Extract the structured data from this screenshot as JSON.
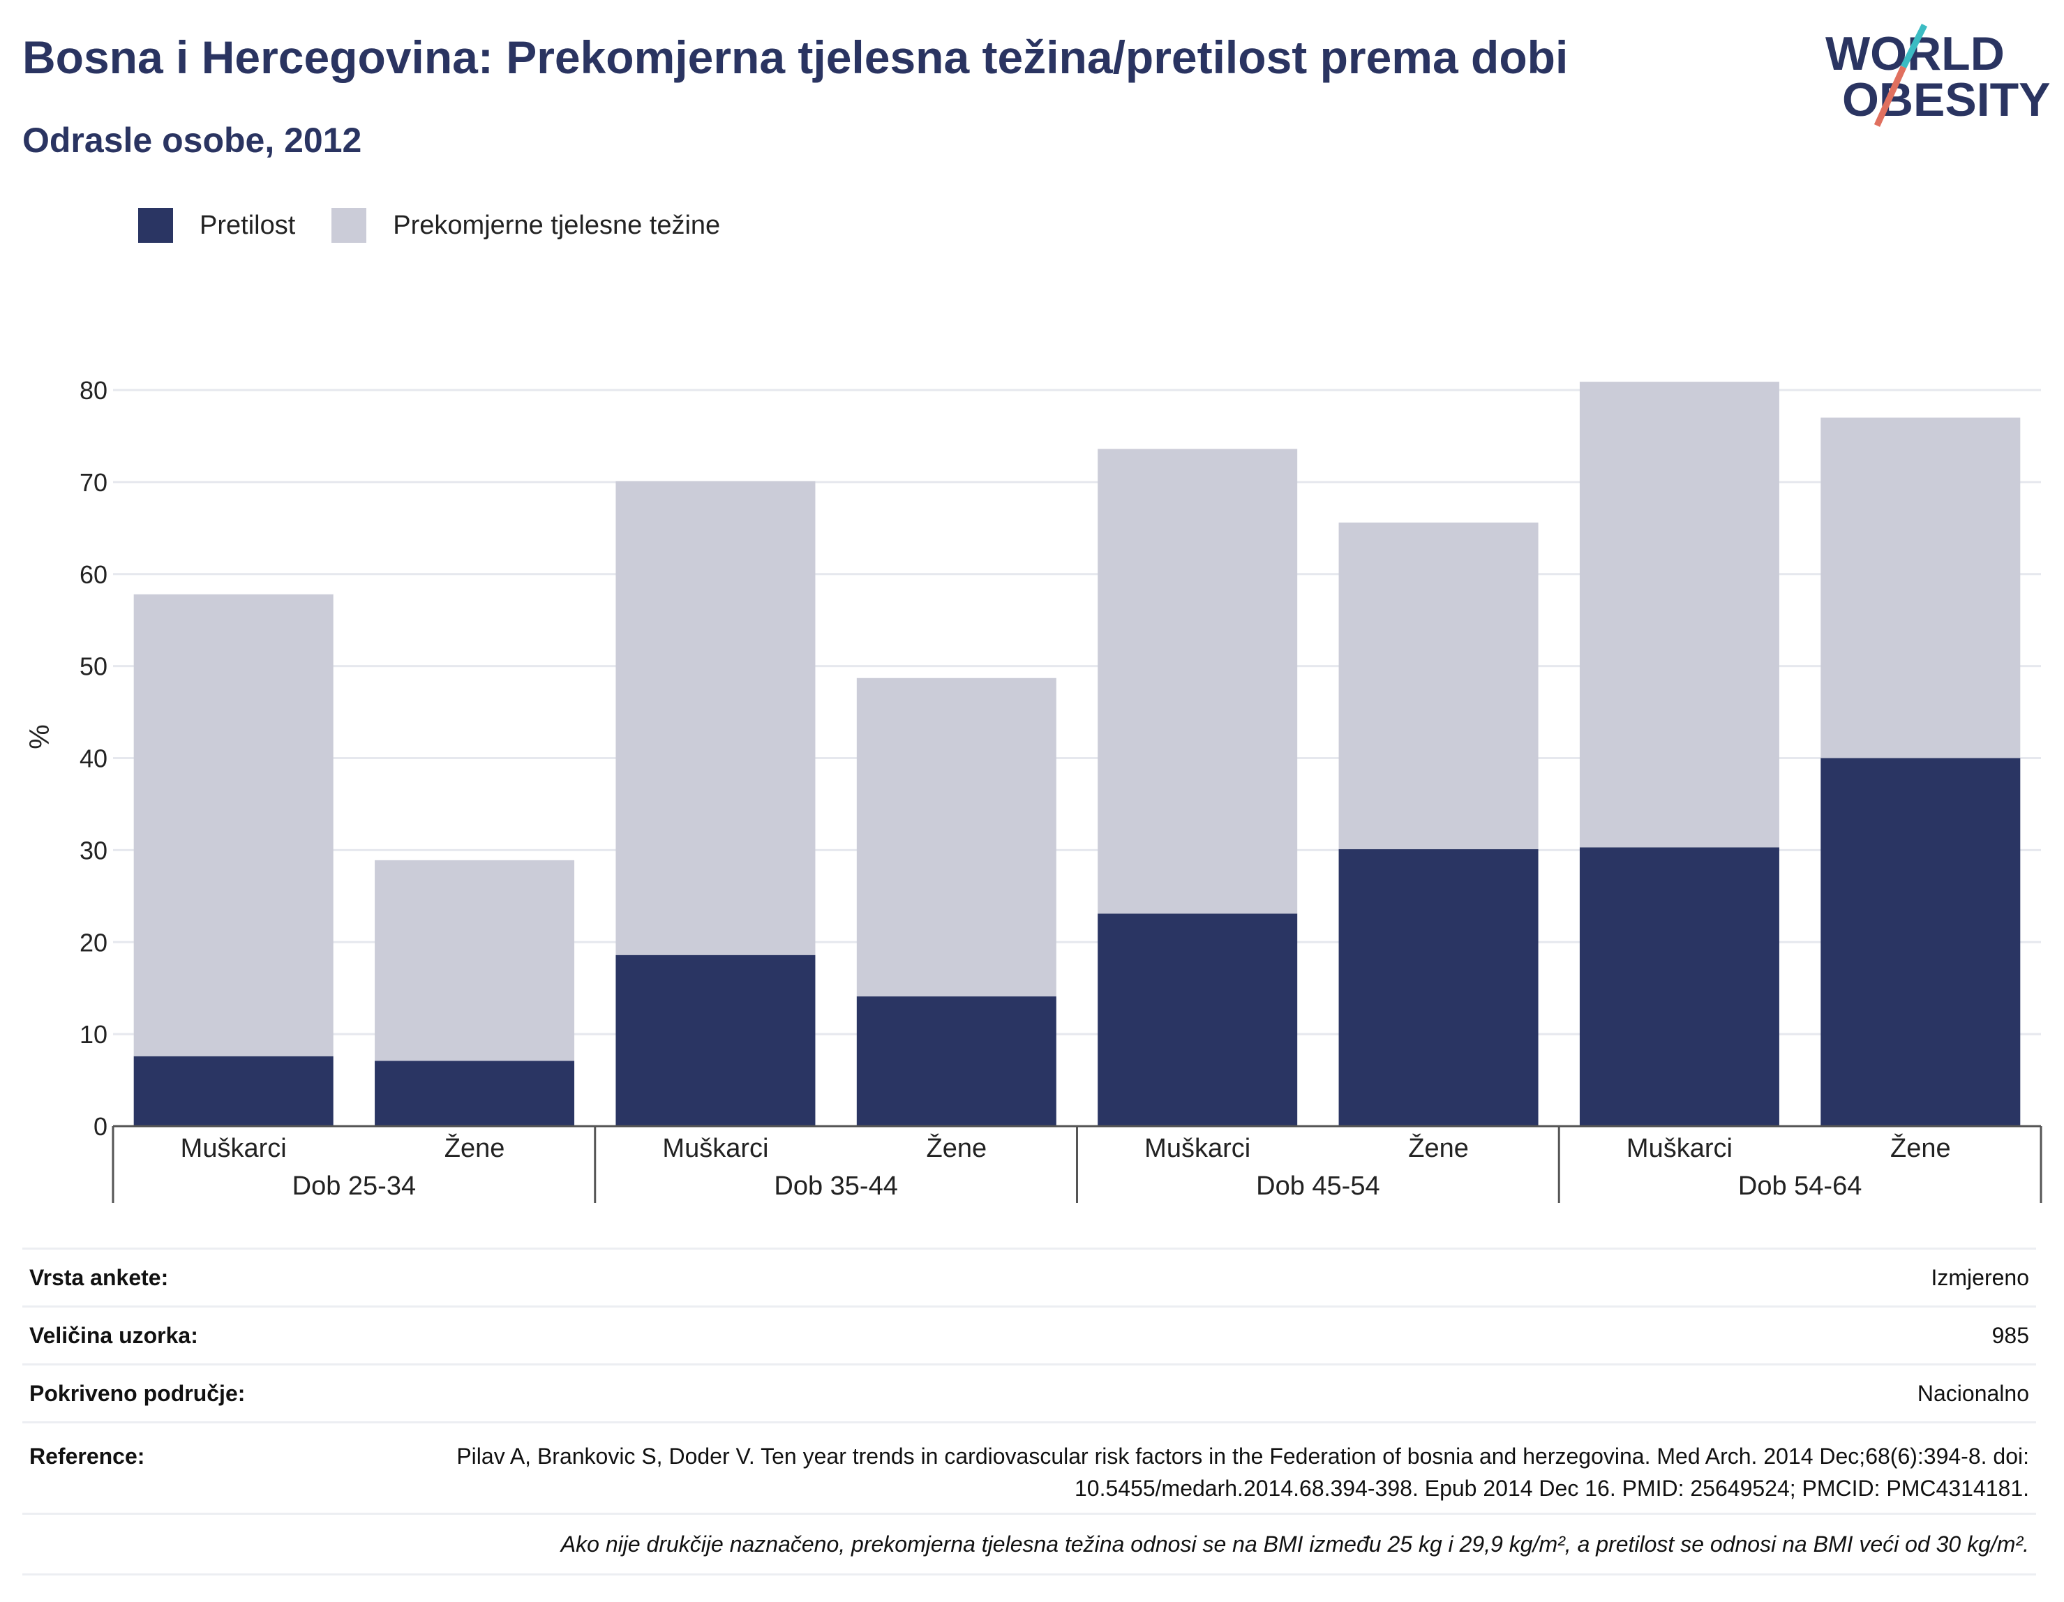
{
  "header": {
    "title": "Bosna i Hercegovina: Prekomjerna tjelesna težina/pretilost prema dobi",
    "subtitle": "Odrasle osobe, 2012"
  },
  "logo": {
    "line1": "WORLD",
    "line2": "OBESITY"
  },
  "colors": {
    "obesity": "#2a3563",
    "overweight": "#cbccd8",
    "grid": "#e6e8ee",
    "axis": "#555555",
    "accent_teal": "#3cbcc3",
    "accent_coral": "#e0705f"
  },
  "chart_data": {
    "type": "bar",
    "stacked": true,
    "ylabel": "%",
    "ylim": [
      0,
      80
    ],
    "yticks": [
      0,
      10,
      20,
      30,
      40,
      50,
      60,
      70,
      80
    ],
    "grid": true,
    "legend_position": "top-left",
    "groups": [
      "Dob 25-34",
      "Dob 35-44",
      "Dob 45-54",
      "Dob 54-64"
    ],
    "subcategories": [
      "Muškarci",
      "Žene"
    ],
    "series": [
      {
        "name": "Pretilost",
        "color": "#2a3563",
        "values": [
          7.6,
          7.1,
          18.6,
          14.1,
          23.1,
          30.1,
          30.3,
          40.0
        ]
      },
      {
        "name": "Prekomjerne tjelesne težine",
        "color": "#cbccd8",
        "values": [
          50.2,
          21.8,
          51.5,
          34.6,
          50.5,
          35.5,
          50.6,
          37.0
        ]
      }
    ]
  },
  "meta": {
    "rows": [
      {
        "key": "Vrsta ankete:",
        "value": "Izmjereno"
      },
      {
        "key": "Veličina uzorka:",
        "value": "985"
      },
      {
        "key": "Pokriveno područje:",
        "value": "Nacionalno"
      }
    ],
    "reference": {
      "key": "Reference:",
      "value": "Pilav A, Brankovic S, Doder V. Ten year trends in cardiovascular risk factors in the Federation of bosnia and herzegovina. Med Arch. 2014 Dec;68(6):394-8. doi: 10.5455/medarh.2014.68.394-398. Epub 2014 Dec 16. PMID: 25649524; PMCID: PMC4314181."
    },
    "note": "Ako nije drukčije naznačeno, prekomjerna tjelesna težina odnosi se na BMI između 25 kg i 29,9 kg/m², a pretilost se odnosi na BMI veći od 30 kg/m²."
  }
}
